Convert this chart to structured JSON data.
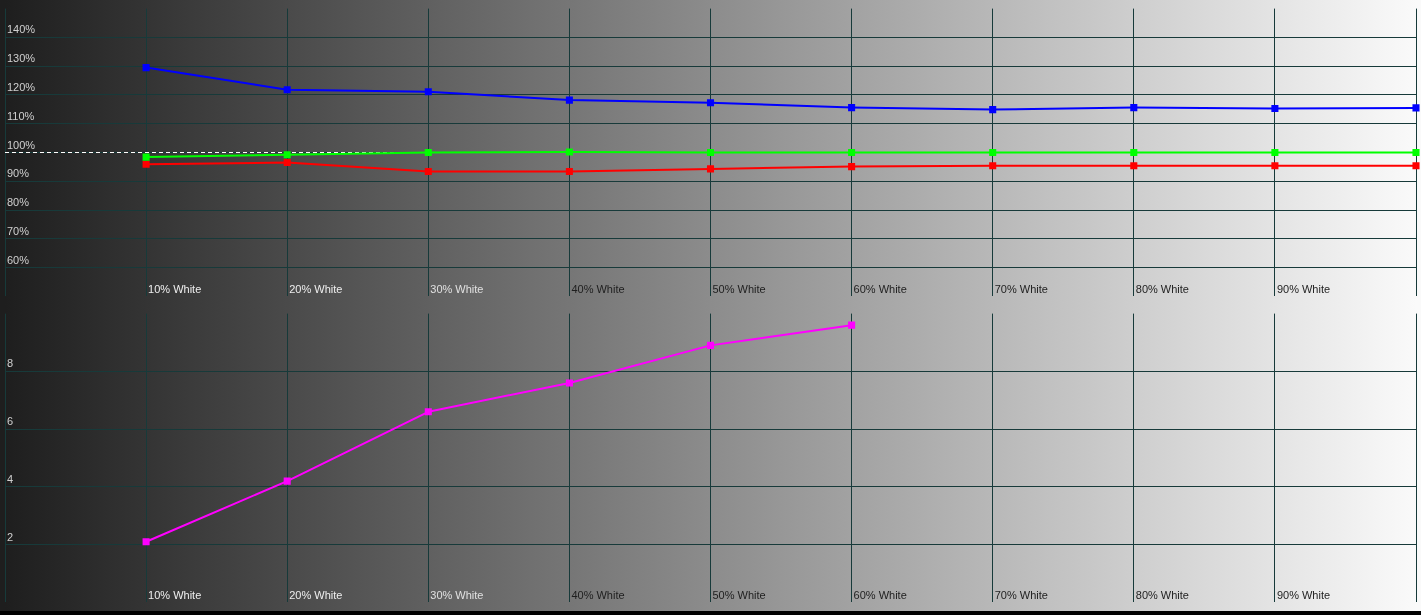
{
  "chart_data": [
    {
      "type": "line",
      "categories": [
        null,
        "10% White",
        "20% White",
        "30% White",
        "40% White",
        "50% White",
        "60% White",
        "70% White",
        "80% White",
        "90% White",
        null
      ],
      "series": [
        {
          "color": "#0000ff",
          "values": [
            null,
            129.5,
            121.8,
            121.1,
            118.2,
            117.3,
            115.6,
            114.9,
            115.6,
            115.3,
            115.5
          ]
        },
        {
          "color": "#00ff00",
          "values": [
            null,
            98.4,
            99.2,
            100,
            100.2,
            100,
            100,
            100,
            100,
            100,
            100
          ]
        },
        {
          "color": "#ff0000",
          "values": [
            null,
            95.9,
            96.5,
            93.4,
            93.4,
            94.3,
            95.1,
            95.4,
            95.4,
            95.4,
            95.4
          ]
        }
      ],
      "ylim": [
        50,
        150
      ],
      "yticks": [
        {
          "value": 60,
          "label": "60%"
        },
        {
          "value": 70,
          "label": "70%"
        },
        {
          "value": 80,
          "label": "80%"
        },
        {
          "value": 90,
          "label": "90%"
        },
        {
          "value": 100,
          "label": "100%"
        },
        {
          "value": 110,
          "label": "110%"
        },
        {
          "value": 120,
          "label": "120%"
        },
        {
          "value": 130,
          "label": "130%"
        },
        {
          "value": 140,
          "label": "140%"
        }
      ],
      "grid": true,
      "marker": "square",
      "line_style": "solid",
      "ref_lines": [
        {
          "axis": "y",
          "value": 100,
          "color": "#ffffff",
          "line_style": "dashed"
        }
      ]
    },
    {
      "type": "line",
      "categories": [
        null,
        "10% White",
        "20% White",
        "30% White",
        "40% White",
        "50% White",
        "60% White",
        "70% White",
        "80% White",
        "90% White",
        null
      ],
      "series": [
        {
          "color": "#ff00ff",
          "values": [
            null,
            2.1,
            4.2,
            6.6,
            7.6,
            8.9,
            9.6,
            null,
            null,
            null,
            null
          ]
        }
      ],
      "ylim": [
        0,
        10
      ],
      "yticks": [
        2,
        4,
        6,
        8
      ],
      "grid": true,
      "marker": "square",
      "line_style": "solid"
    }
  ]
}
